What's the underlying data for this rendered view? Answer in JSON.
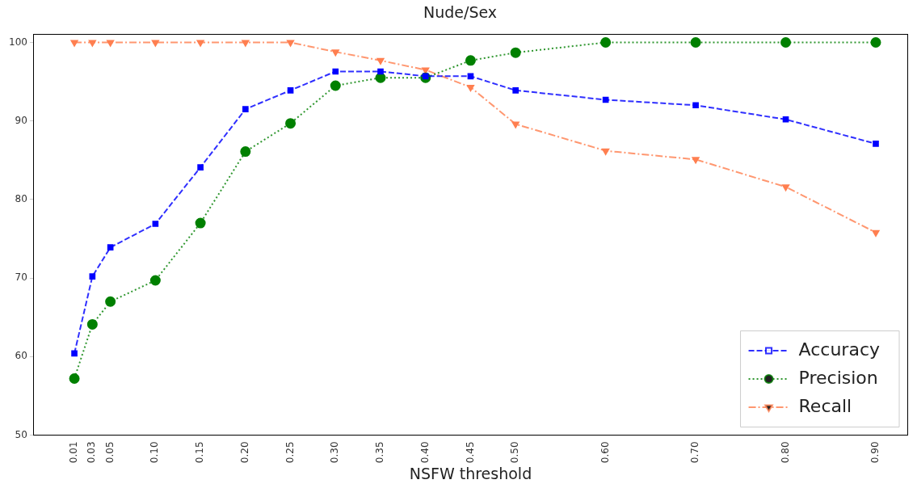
{
  "chart_data": {
    "type": "line",
    "title": "Nude/Sex",
    "xlabel": "NSFW threshold",
    "x": [
      0.01,
      0.03,
      0.05,
      0.1,
      0.15,
      0.2,
      0.25,
      0.3,
      0.35,
      0.4,
      0.45,
      0.5,
      0.6,
      0.7,
      0.8,
      0.9
    ],
    "series": [
      {
        "name": "Accuracy",
        "color": "#0000ff",
        "marker": "square",
        "line_style": "dashed",
        "values": [
          60.4,
          70.2,
          73.9,
          76.9,
          84.1,
          91.5,
          93.9,
          96.3,
          96.3,
          95.7,
          95.7,
          93.9,
          92.7,
          92.0,
          90.2,
          87.1
        ]
      },
      {
        "name": "Precision",
        "color": "#008000",
        "marker": "circle",
        "line_style": "dotted",
        "values": [
          57.2,
          64.1,
          67.0,
          69.7,
          77.0,
          86.1,
          89.7,
          94.5,
          95.5,
          95.5,
          97.7,
          98.7,
          100,
          100,
          100,
          100
        ]
      },
      {
        "name": "Recall",
        "color": "#ff7f50",
        "marker": "triangle",
        "line_style": "dashdot",
        "values": [
          100,
          100,
          100,
          100,
          100,
          100,
          100,
          98.8,
          97.7,
          96.5,
          94.3,
          89.6,
          86.2,
          85.1,
          81.6,
          75.8
        ]
      }
    ],
    "xlim": [
      -0.035,
      0.935
    ],
    "ylim": [
      50,
      101
    ],
    "xticks": [
      {
        "value": 0.01,
        "label": "0.01"
      },
      {
        "value": 0.03,
        "label": "0.03"
      },
      {
        "value": 0.05,
        "label": "0.05"
      },
      {
        "value": 0.1,
        "label": "0.10"
      },
      {
        "value": 0.15,
        "label": "0.15"
      },
      {
        "value": 0.2,
        "label": "0.20"
      },
      {
        "value": 0.25,
        "label": "0.25"
      },
      {
        "value": 0.3,
        "label": "0.30"
      },
      {
        "value": 0.35,
        "label": "0.35"
      },
      {
        "value": 0.4,
        "label": "0.40"
      },
      {
        "value": 0.45,
        "label": "0.45"
      },
      {
        "value": 0.5,
        "label": "0.50"
      },
      {
        "value": 0.6,
        "label": "0.60"
      },
      {
        "value": 0.7,
        "label": "0.70"
      },
      {
        "value": 0.8,
        "label": "0.80"
      },
      {
        "value": 0.9,
        "label": "0.90"
      }
    ],
    "yticks": [
      50,
      60,
      70,
      80,
      90,
      100
    ],
    "grid": false,
    "legend": "bottom right"
  }
}
